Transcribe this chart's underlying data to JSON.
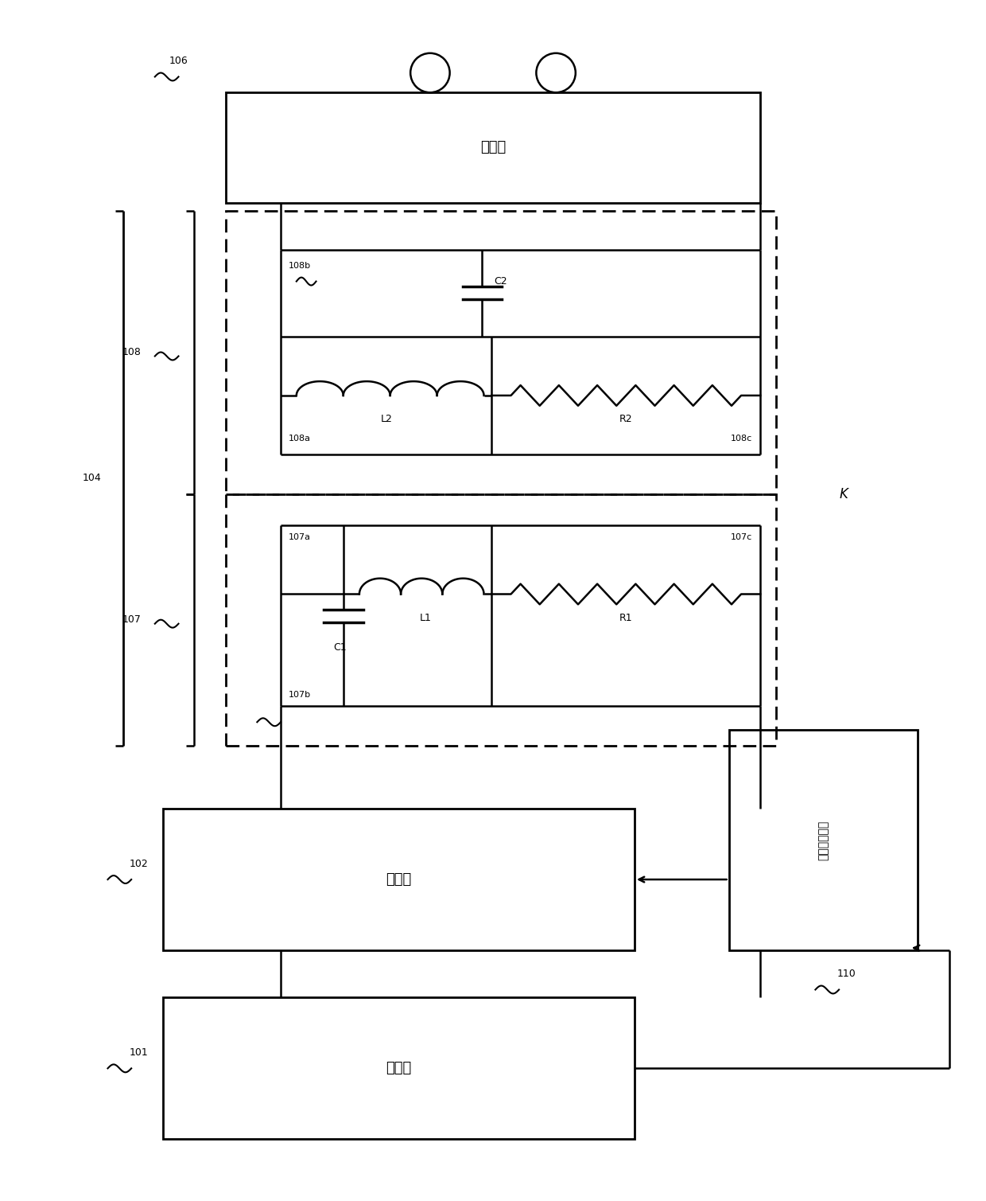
{
  "background_color": "#ffffff",
  "text_color": "#000000",
  "box106_label": "副振部",
  "box102_label": "振频部",
  "box101_label": "发电部",
  "box110_label": "送电侧控制部",
  "label_106": "106",
  "label_102": "102",
  "label_101": "101",
  "label_110": "110",
  "label_104": "104",
  "label_107": "107",
  "label_108": "108",
  "label_107a": "107a",
  "label_107b": "107b",
  "label_107c": "107c",
  "label_108a": "108a",
  "label_108b": "108b",
  "label_108c": "108c",
  "label_L1": "L1",
  "label_L2": "L2",
  "label_R1": "R1",
  "label_R2": "R2",
  "label_C1": "C1",
  "label_C2": "C2",
  "label_K": "K"
}
